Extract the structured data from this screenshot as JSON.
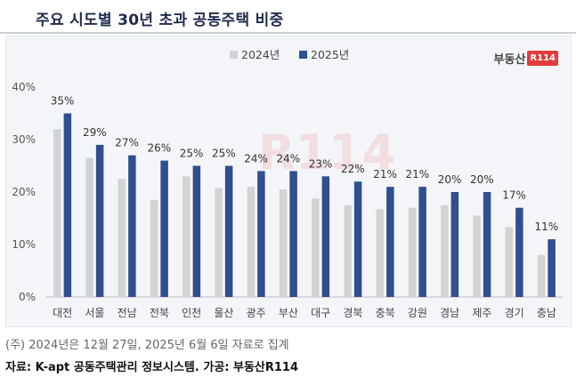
{
  "title": "주요 시도별 30년 초과 공동주택 비중",
  "brand": {
    "text": "부동산",
    "badge": "R114"
  },
  "watermark": "R114",
  "note": "(주) 2024년은 12월 27일, 2025년 6월 6일 자료로 집계",
  "source": "자료: K-apt 공동주택관리 정보시스템. 가공: 부동산R114",
  "chart_data": {
    "type": "bar",
    "categories": [
      "대전",
      "서울",
      "전남",
      "전북",
      "인천",
      "울산",
      "광주",
      "부산",
      "대구",
      "경북",
      "충북",
      "강원",
      "경남",
      "제주",
      "경기",
      "충남"
    ],
    "series": [
      {
        "name": "2024년",
        "color": "#d3d3d3",
        "values": [
          32,
          26.5,
          22.5,
          18.5,
          23,
          20.8,
          21,
          20.5,
          18.8,
          17.5,
          16.7,
          17,
          17.5,
          15.5,
          13.3,
          8
        ]
      },
      {
        "name": "2025년",
        "color": "#2f4f8f",
        "values": [
          35,
          29,
          27,
          26,
          25,
          25,
          24,
          24,
          23,
          22,
          21,
          21,
          20,
          20,
          17,
          11
        ]
      }
    ],
    "data_labels": [
      "35%",
      "29%",
      "27%",
      "26%",
      "25%",
      "25%",
      "24%",
      "24%",
      "23%",
      "22%",
      "21%",
      "21%",
      "20%",
      "20%",
      "17%",
      "11%"
    ],
    "ylim": [
      0,
      40
    ],
    "yticks": [
      0,
      10,
      20,
      30,
      40
    ],
    "ytick_labels": [
      "0%",
      "10%",
      "20%",
      "30%",
      "40%"
    ],
    "legend_position": "top",
    "grid": false
  }
}
